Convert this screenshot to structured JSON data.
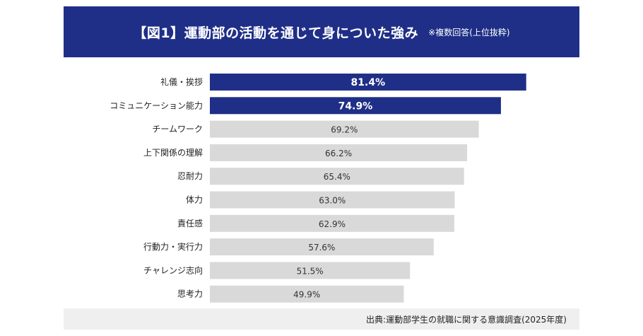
{
  "header": {
    "title": "【図1】運動部の活動を通じて身についた強み",
    "note": "※複数回答(上位抜粋)"
  },
  "footer": {
    "source": "出典:運動部学生の就職に関する意識調査(2025年度)"
  },
  "colors": {
    "header_bg": "#1f2f87",
    "highlight_bar": "#1f2f87",
    "normal_bar": "#d9d9d9",
    "footer_bg": "#efefef"
  },
  "chart_data": {
    "type": "bar",
    "orientation": "horizontal",
    "categories": [
      "礼儀・挨拶",
      "コミュニケーション能力",
      "チームワーク",
      "上下関係の理解",
      "忍耐力",
      "体力",
      "責任感",
      "行動力・実行力",
      "チャレンジ志向",
      "思考力"
    ],
    "values": [
      81.4,
      74.9,
      69.2,
      66.2,
      65.4,
      63.0,
      62.9,
      57.6,
      51.5,
      49.9
    ],
    "labels": [
      "81.4%",
      "74.9%",
      "69.2%",
      "66.2%",
      "65.4%",
      "63.0%",
      "62.9%",
      "57.6%",
      "51.5%",
      "49.9%"
    ],
    "highlighted_count": 2,
    "unit": "%",
    "xlim": [
      0,
      100
    ],
    "grid": false,
    "legend": "none"
  }
}
